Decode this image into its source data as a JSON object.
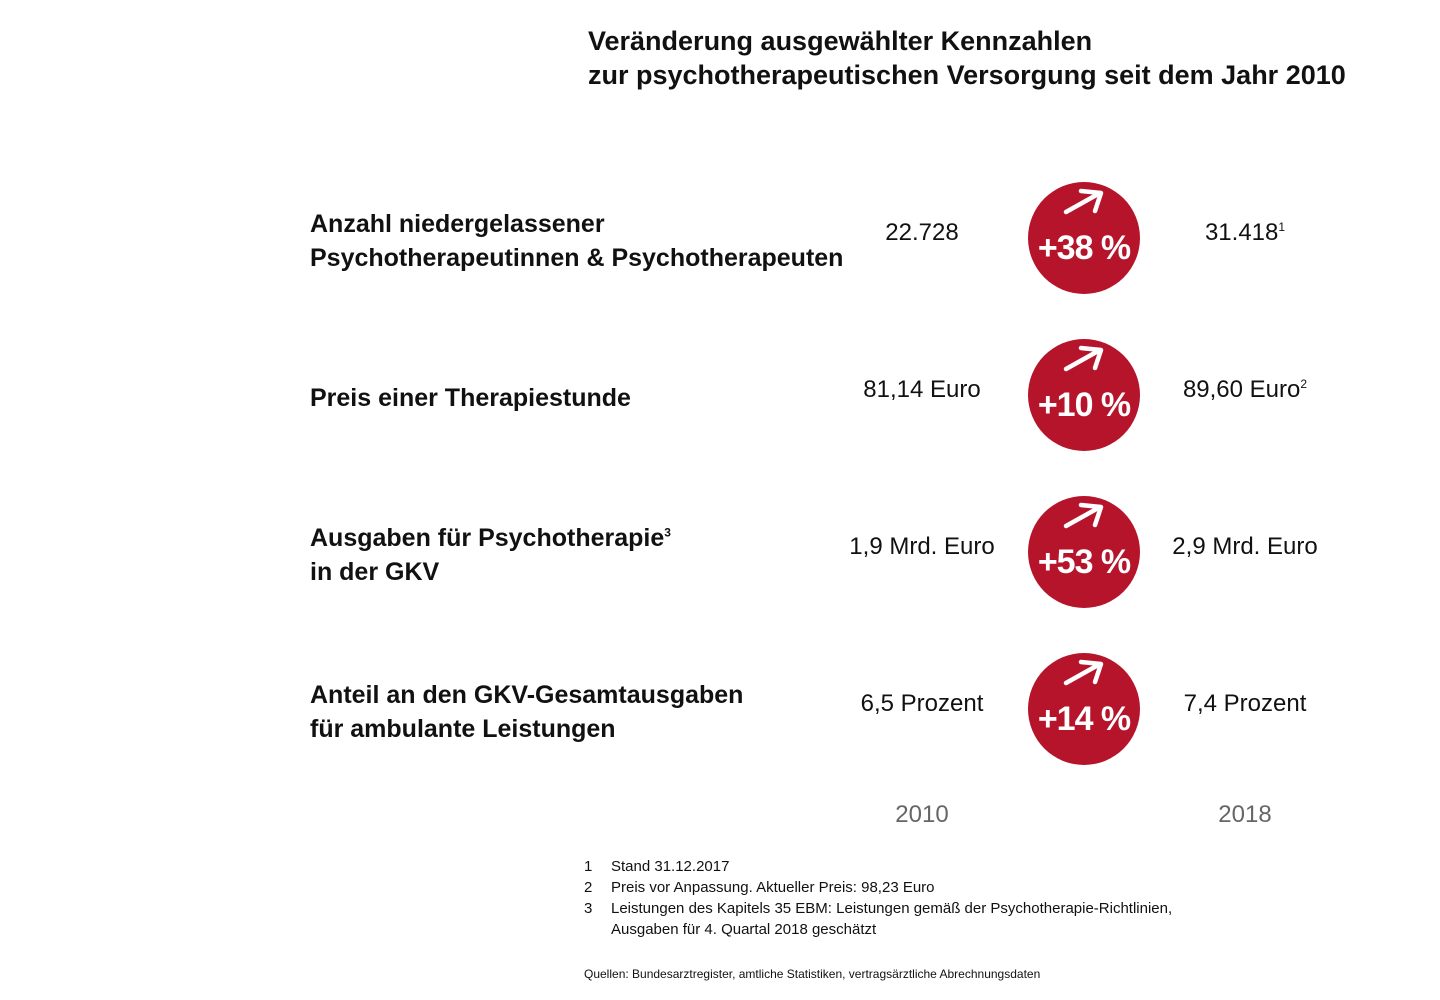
{
  "title": {
    "line1": "Veränderung ausgewählter Kennzahlen",
    "line2": "zur psychotherapeutischen Versorgung seit dem Jahr 2010"
  },
  "colors": {
    "accent": "#b5142b",
    "text": "#111111",
    "year_label": "#666666"
  },
  "chart_data": {
    "type": "table",
    "columns": [
      "2010",
      "2018"
    ],
    "rows": [
      {
        "label_lines": [
          "Anzahl niedergelassener",
          "Psychotherapeutinnen & Psychotherapeuten"
        ],
        "label_sup": "",
        "value_2010": "22.728",
        "value_2018": "31.418",
        "value_2018_sup": "1",
        "change": "+38 %",
        "change_icon": "arrow-up-right-icon"
      },
      {
        "label_lines": [
          "Preis einer Therapiestunde"
        ],
        "label_sup": "",
        "value_2010": "81,14 Euro",
        "value_2018": "89,60 Euro",
        "value_2018_sup": "2",
        "change": "+10 %",
        "change_icon": "arrow-up-right-icon"
      },
      {
        "label_lines": [
          "Ausgaben für Psychotherapie",
          "in der GKV"
        ],
        "label_sup": "3",
        "value_2010": "1,9 Mrd. Euro",
        "value_2018": "2,9 Mrd. Euro",
        "value_2018_sup": "",
        "change": "+53 %",
        "change_icon": "arrow-up-right-icon"
      },
      {
        "label_lines": [
          "Anteil an den GKV-Gesamtausgaben",
          "für ambulante Leistungen"
        ],
        "label_sup": "",
        "value_2010": "6,5 Prozent",
        "value_2018": "7,4 Prozent",
        "value_2018_sup": "",
        "change": "+14 %",
        "change_icon": "arrow-up-right-icon"
      }
    ]
  },
  "footnotes": [
    {
      "num": "1",
      "lines": [
        "Stand 31.12.2017"
      ]
    },
    {
      "num": "2",
      "lines": [
        "Preis vor Anpassung. Aktueller Preis: 98,23 Euro"
      ]
    },
    {
      "num": "3",
      "lines": [
        "Leistungen des Kapitels 35 EBM: Leistungen gemäß der Psychotherapie-Richtlinien,",
        "Ausgaben für 4. Quartal 2018 geschätzt"
      ]
    }
  ],
  "sources": "Quellen: Bundesarztregister, amtliche Statistiken, vertragsärztliche Abrechnungsdaten"
}
